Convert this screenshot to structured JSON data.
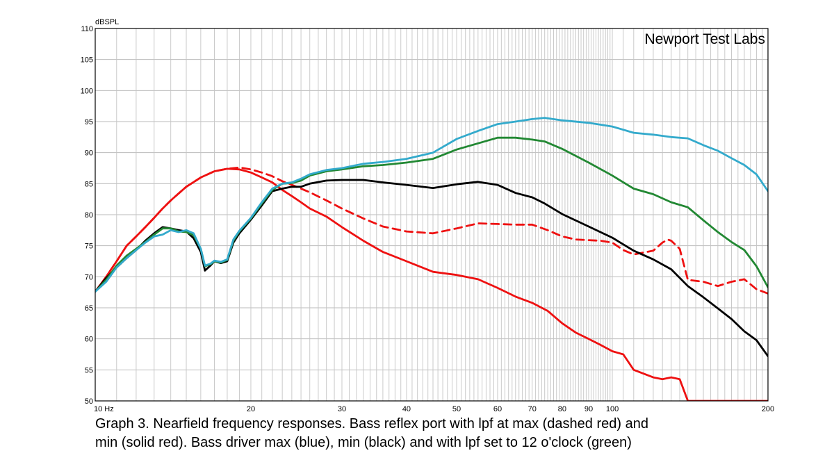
{
  "chart_data": {
    "type": "line",
    "ylabel": "dBSPL",
    "xscale": "log",
    "xlim": [
      10,
      200
    ],
    "ylim": [
      50,
      110
    ],
    "yticks": [
      50,
      55,
      60,
      65,
      70,
      75,
      80,
      85,
      90,
      95,
      100,
      105,
      110
    ],
    "xtick_labels": [
      {
        "value": 10,
        "label": "10  Hz"
      },
      {
        "value": 20,
        "label": "20"
      },
      {
        "value": 30,
        "label": "30"
      },
      {
        "value": 40,
        "label": "40"
      },
      {
        "value": 50,
        "label": "50"
      },
      {
        "value": 60,
        "label": "60"
      },
      {
        "value": 70,
        "label": "70"
      },
      {
        "value": 80,
        "label": "80"
      },
      {
        "value": 90,
        "label": "90"
      },
      {
        "value": 100,
        "label": "100"
      },
      {
        "value": 200,
        "label": "200"
      }
    ],
    "grid": true,
    "annotation": "Newport Test Labs",
    "series": [
      {
        "color": "#33aacc",
        "style": "solid",
        "x": [
          10,
          10.5,
          11,
          11.5,
          12,
          12.5,
          13,
          13.5,
          14,
          14.5,
          15,
          15.5,
          16,
          16.3,
          16.7,
          17,
          17.5,
          18,
          18.5,
          19,
          20,
          21,
          22,
          23,
          24,
          25,
          26,
          28,
          30,
          33,
          36,
          40,
          45,
          50,
          55,
          60,
          65,
          70,
          74,
          80,
          90,
          100,
          110,
          120,
          130,
          140,
          150,
          160,
          170,
          180,
          190,
          200
        ],
        "y": [
          67.6,
          69.2,
          71.5,
          73,
          74.3,
          75.5,
          76.5,
          76.8,
          77.5,
          77.2,
          77.5,
          77,
          74.5,
          71.8,
          72.1,
          72.6,
          72.4,
          72.8,
          76,
          77.4,
          79.5,
          82,
          84.2,
          85,
          85.2,
          85.8,
          86.5,
          87.2,
          87.5,
          88.2,
          88.5,
          89,
          90,
          92.2,
          93.5,
          94.6,
          95,
          95.4,
          95.6,
          95.2,
          94.8,
          94.2,
          93.2,
          92.9,
          92.5,
          92.3,
          91.2,
          90.3,
          89.1,
          88,
          86.5,
          83.8
        ]
      },
      {
        "color": "#000000",
        "style": "solid",
        "x": [
          10,
          10.5,
          11,
          11.5,
          12,
          12.5,
          13,
          13.5,
          14,
          14.5,
          15,
          15.5,
          16,
          16.3,
          16.7,
          17,
          17.5,
          18,
          18.5,
          19,
          20,
          21,
          22,
          23,
          24,
          25,
          26,
          28,
          30,
          33,
          36,
          40,
          45,
          50,
          55,
          60,
          65,
          70,
          74,
          80,
          90,
          100,
          110,
          120,
          130,
          140,
          150,
          160,
          170,
          180,
          190,
          200
        ],
        "y": [
          67.6,
          69.8,
          71.5,
          73,
          74.3,
          75.8,
          77,
          78,
          77.8,
          77.5,
          77.3,
          76.2,
          74,
          71,
          71.8,
          72.5,
          72.2,
          72.5,
          75.5,
          77,
          79.2,
          81.5,
          83.8,
          84.2,
          84.5,
          84.5,
          85,
          85.5,
          85.6,
          85.6,
          85.2,
          84.8,
          84.3,
          84.9,
          85.3,
          84.8,
          83.5,
          82.8,
          81.8,
          80.1,
          78.1,
          76.3,
          74.2,
          72.8,
          71.2,
          68.5,
          66.7,
          64.9,
          63.2,
          61.2,
          59.8,
          57.2
        ]
      },
      {
        "color": "#228833",
        "style": "solid",
        "x": [
          10,
          10.5,
          11,
          11.5,
          12,
          12.5,
          13,
          13.5,
          14,
          14.5,
          15,
          15.5,
          16,
          16.3,
          16.7,
          17,
          17.5,
          18,
          18.5,
          19,
          20,
          21,
          22,
          23,
          24,
          25,
          26,
          28,
          30,
          33,
          36,
          40,
          45,
          50,
          55,
          60,
          65,
          70,
          74,
          80,
          90,
          100,
          110,
          120,
          130,
          140,
          150,
          160,
          170,
          180,
          190,
          200
        ],
        "y": [
          67.6,
          69.5,
          71.8,
          73.4,
          74.5,
          75.6,
          76.8,
          77.8,
          77.8,
          77.3,
          77.2,
          76.7,
          74.5,
          71.7,
          72,
          72.5,
          72.3,
          72.7,
          75.8,
          77.3,
          79.4,
          81.8,
          84,
          85,
          85.1,
          85.5,
          86.3,
          87,
          87.3,
          87.8,
          88,
          88.4,
          89,
          90.5,
          91.5,
          92.4,
          92.4,
          92.1,
          91.8,
          90.6,
          88.4,
          86.3,
          84.2,
          83.3,
          82,
          81.2,
          79.1,
          77.2,
          75.6,
          74.3,
          71.7,
          68.3
        ]
      },
      {
        "color": "#ee1111",
        "style": "solid",
        "x": [
          10,
          10.5,
          11,
          11.5,
          12,
          12.5,
          13,
          13.5,
          14,
          15,
          16,
          17,
          18,
          19,
          20,
          21,
          22,
          23,
          24,
          25,
          26,
          28,
          30,
          33,
          36,
          40,
          45,
          50,
          55,
          60,
          65,
          70,
          75,
          80,
          85,
          90,
          95,
          100,
          105,
          110,
          120,
          125,
          130,
          135,
          140,
          200
        ],
        "y": [
          67.6,
          70,
          72.5,
          75,
          76.5,
          78,
          79.5,
          81,
          82.3,
          84.5,
          86,
          87,
          87.4,
          87.3,
          86.8,
          86,
          85.2,
          84,
          83,
          82,
          81,
          79.7,
          78,
          75.8,
          74,
          72.5,
          70.8,
          70.3,
          69.6,
          68.2,
          66.8,
          65.8,
          64.5,
          62.5,
          61,
          60,
          59,
          58,
          57.5,
          55,
          53.8,
          53.5,
          53.8,
          53.5,
          50,
          50
        ]
      },
      {
        "color": "#ee1111",
        "style": "dashed",
        "x": [
          10,
          10.5,
          11,
          11.5,
          12,
          12.5,
          13,
          13.5,
          14,
          15,
          16,
          17,
          18,
          19,
          20,
          21,
          22,
          23,
          24,
          25,
          26,
          28,
          30,
          33,
          36,
          40,
          45,
          50,
          55,
          60,
          65,
          70,
          75,
          80,
          85,
          90,
          95,
          100,
          105,
          110,
          120,
          125,
          128,
          130,
          135,
          140,
          150,
          160,
          170,
          180,
          190,
          200
        ],
        "y": [
          67.6,
          70,
          72.5,
          75,
          76.5,
          78,
          79.5,
          81,
          82.3,
          84.5,
          86,
          87,
          87.4,
          87.6,
          87.3,
          86.8,
          86.2,
          85.4,
          84.8,
          84.2,
          83.6,
          82.3,
          81,
          79.4,
          78.1,
          77.3,
          77,
          77.8,
          78.6,
          78.5,
          78.4,
          78.4,
          77.5,
          76.5,
          76,
          75.9,
          75.8,
          75.5,
          74.3,
          73.6,
          74.2,
          75.5,
          76,
          75.8,
          74.5,
          69.5,
          69.2,
          68.5,
          69.2,
          69.6,
          68,
          67.3
        ]
      }
    ]
  },
  "caption": {
    "line1": "Graph 3. Nearfield frequency responses. Bass reflex port with lpf at max (dashed red) and",
    "line2": "min (solid red). Bass driver max (blue), min (black) and with lpf set to 12 o'clock (green)"
  }
}
